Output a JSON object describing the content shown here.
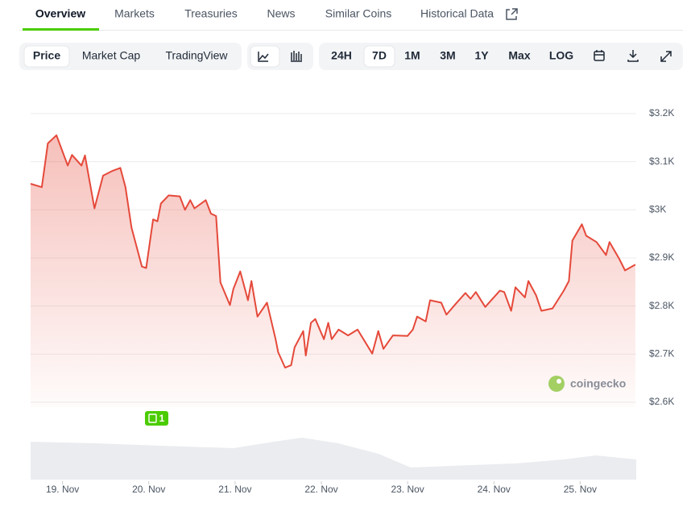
{
  "tabs": [
    "Overview",
    "Markets",
    "Treasuries",
    "News",
    "Similar Coins",
    "Historical Data"
  ],
  "chart_views": [
    "Price",
    "Market Cap",
    "TradingView"
  ],
  "ranges": [
    "24H",
    "7D",
    "1M",
    "3M",
    "1Y",
    "Max",
    "LOG"
  ],
  "news_badge": "1",
  "watermark": "coingecko",
  "chart_data": {
    "type": "line",
    "x": [
      18.63,
      18.76,
      18.83,
      18.93,
      19.06,
      19.11,
      19.22,
      19.26,
      19.37,
      19.47,
      19.58,
      19.67,
      19.73,
      19.8,
      19.92,
      19.97,
      20.05,
      20.1,
      20.14,
      20.23,
      20.36,
      20.42,
      20.48,
      20.53,
      20.66,
      20.72,
      20.78,
      20.83,
      20.94,
      20.98,
      21.06,
      21.15,
      21.19,
      21.26,
      21.37,
      21.47,
      21.5,
      21.58,
      21.65,
      21.69,
      21.79,
      21.82,
      21.88,
      21.93,
      22.03,
      22.08,
      22.12,
      22.2,
      22.31,
      22.42,
      22.59,
      22.66,
      22.72,
      22.83,
      23.0,
      23.06,
      23.11,
      23.21,
      23.26,
      23.39,
      23.45,
      23.56,
      23.67,
      23.73,
      23.79,
      23.9,
      24.07,
      24.12,
      24.2,
      24.25,
      24.36,
      24.4,
      24.49,
      24.55,
      24.68,
      24.81,
      24.87,
      24.91,
      25.02,
      25.07,
      25.19,
      25.3,
      25.34,
      25.45,
      25.52,
      25.64
    ],
    "series": [
      {
        "color": "#e5493a",
        "values": [
          3054,
          3047,
          3138,
          3155,
          3092,
          3114,
          3092,
          3113,
          3003,
          3071,
          3081,
          3087,
          3047,
          2963,
          2882,
          2879,
          2980,
          2976,
          3013,
          3030,
          3028,
          3000,
          3020,
          3003,
          3020,
          2992,
          2987,
          2849,
          2802,
          2835,
          2872,
          2812,
          2852,
          2778,
          2807,
          2731,
          2704,
          2672,
          2677,
          2714,
          2748,
          2697,
          2765,
          2773,
          2731,
          2765,
          2731,
          2751,
          2739,
          2751,
          2701,
          2748,
          2711,
          2739,
          2738,
          2751,
          2778,
          2768,
          2812,
          2807,
          2782,
          2805,
          2827,
          2815,
          2829,
          2798,
          2832,
          2829,
          2790,
          2839,
          2818,
          2852,
          2822,
          2790,
          2795,
          2832,
          2852,
          2936,
          2970,
          2946,
          2933,
          2906,
          2933,
          2899,
          2874,
          2886
        ]
      }
    ],
    "xlim": [
      18.63,
      25.65
    ],
    "xticks": [
      {
        "value": 19,
        "label": "19. Nov"
      },
      {
        "value": 20,
        "label": "20. Nov"
      },
      {
        "value": 21,
        "label": "21. Nov"
      },
      {
        "value": 22,
        "label": "22. Nov"
      },
      {
        "value": 23,
        "label": "23. Nov"
      },
      {
        "value": 24,
        "label": "24. Nov"
      },
      {
        "value": 25,
        "label": "25. Nov"
      }
    ],
    "ylim": [
      2590,
      3235
    ],
    "yticks": [
      {
        "value": 2600,
        "label": "$2.6K"
      },
      {
        "value": 2700,
        "label": "$2.7K"
      },
      {
        "value": 2800,
        "label": "$2.8K"
      },
      {
        "value": 2900,
        "label": "$2.9K"
      },
      {
        "value": 3000,
        "label": "$3K"
      },
      {
        "value": 3100,
        "label": "$3.1K"
      },
      {
        "value": 3200,
        "label": "$3.2K"
      }
    ],
    "grid": true
  }
}
